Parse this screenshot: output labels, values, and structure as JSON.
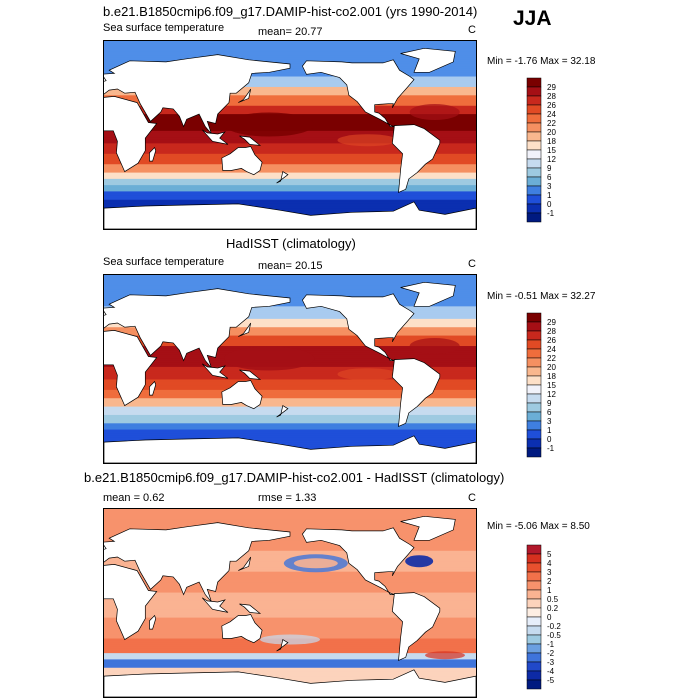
{
  "season": "JJA",
  "panels": [
    {
      "title": "b.e21.B1850cmip6.f09_g17.DAMIP-hist-co2.001 (yrs 1990-2014)",
      "left_label": "Sea surface temperature",
      "stats": "mean=  20.77",
      "stat2": "",
      "units": "C",
      "minmax": "Min =  -1.76 Max =  32.18",
      "colorbar": {
        "levels": [
          "29",
          "28",
          "26",
          "24",
          "22",
          "20",
          "18",
          "15",
          "12",
          "9",
          "6",
          "3",
          "1",
          "0",
          "-1"
        ],
        "colors": [
          "#7a0000",
          "#a50f15",
          "#c8281d",
          "#e14a24",
          "#ef6d3c",
          "#f59061",
          "#f9b78e",
          "#fde0c8",
          "#f1f2fa",
          "#c6dbef",
          "#9ecae1",
          "#6baed6",
          "#3f7fe0",
          "#1f4fd9",
          "#0b2fb0",
          "#001a80"
        ]
      },
      "map": "model"
    },
    {
      "title": "HadISST (climatology)",
      "left_label": "Sea surface temperature",
      "stats": "mean=  20.15",
      "stat2": "",
      "units": "C",
      "minmax": "Min =  -0.51 Max =  32.27",
      "colorbar": {
        "levels": [
          "29",
          "28",
          "26",
          "24",
          "22",
          "20",
          "18",
          "15",
          "12",
          "9",
          "6",
          "3",
          "1",
          "0",
          "-1"
        ],
        "colors": [
          "#7a0000",
          "#a50f15",
          "#c8281d",
          "#e14a24",
          "#ef6d3c",
          "#f59061",
          "#f9b78e",
          "#fde0c8",
          "#f1f2fa",
          "#c6dbef",
          "#9ecae1",
          "#6baed6",
          "#3f7fe0",
          "#1f4fd9",
          "#0b2fb0",
          "#001a80"
        ]
      },
      "map": "obs"
    },
    {
      "title": "b.e21.B1850cmip6.f09_g17.DAMIP-hist-co2.001 - HadISST (climatology)",
      "left_label": "mean =   0.62",
      "stats": "rmse =   1.33",
      "stat2": "",
      "units": "C",
      "minmax": "Min =  -5.06 Max =   8.50",
      "colorbar": {
        "levels": [
          "5",
          "4",
          "3",
          "2",
          "1",
          "0.5",
          "0.2",
          "0",
          "-0.2",
          "-0.5",
          "-1",
          "-2",
          "-3",
          "-4",
          "-5"
        ],
        "colors": [
          "#b2182b",
          "#d6301f",
          "#e8502e",
          "#f2714a",
          "#f7926c",
          "#fab392",
          "#fcd3bc",
          "#fdeee3",
          "#e6eefa",
          "#c6dbef",
          "#9ecae1",
          "#6b9fe0",
          "#3f74db",
          "#2149c9",
          "#0d2aa6",
          "#001a80"
        ]
      },
      "map": "diff"
    }
  ]
}
